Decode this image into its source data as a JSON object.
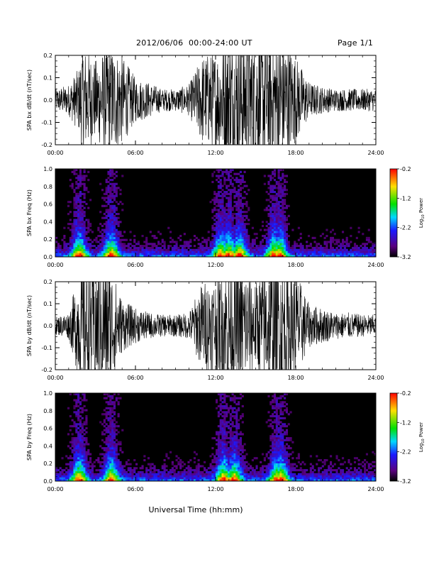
{
  "header": {
    "title": "2012/06/06  00:00-24:00 UT",
    "page": "Page 1/1"
  },
  "xaxis": {
    "label": "Universal Time (hh:mm)",
    "range_hours": [
      0,
      24
    ],
    "ticks": [
      "00:00",
      "06:00",
      "12:00",
      "18:00",
      "24:00"
    ]
  },
  "colorbar": {
    "label_prefix": "Log",
    "label_sub": "10",
    "label_suffix": " Power",
    "ticks": [
      "-0.2",
      "-1.2",
      "-2.2",
      "-3.2"
    ],
    "range": [
      -3.2,
      -0.2
    ],
    "colormap": "rainbow (black-purple-blue-cyan-green-yellow-red)"
  },
  "chart_data": [
    {
      "type": "line",
      "ylabel": "SPA bx dB/dt (nT/sec)",
      "ylim": [
        -0.2,
        0.2
      ],
      "yticks": [
        "-0.2",
        "-0.1",
        "0.0",
        "0.1",
        "0.2"
      ],
      "series": [
        {
          "x_hours": [
            0,
            1,
            1.8,
            2,
            3,
            4,
            5,
            6,
            7,
            8,
            9,
            10,
            11,
            12,
            13,
            14,
            15,
            16,
            17,
            18,
            19,
            20,
            21,
            22,
            23,
            24
          ],
          "amplitude": [
            0.05,
            0.07,
            0.15,
            0.25,
            0.18,
            0.25,
            0.2,
            0.1,
            0.08,
            0.05,
            0.05,
            0.07,
            0.2,
            0.22,
            0.3,
            0.3,
            0.3,
            0.3,
            0.3,
            0.2,
            0.08,
            0.06,
            0.05,
            0.05,
            0.05,
            0.05
          ]
        }
      ]
    },
    {
      "type": "heatmap",
      "ylabel": "SPA bx Freq (Hz)",
      "ylim": [
        0.0,
        1.0
      ],
      "yticks": [
        "0.0",
        "0.2",
        "0.4",
        "0.6",
        "0.8",
        "1.0"
      ],
      "zlim": [
        -3.2,
        -0.2
      ],
      "activity_hours": [
        1.8,
        4.2,
        12.4,
        13.0,
        13.8,
        16.4,
        16.8
      ]
    },
    {
      "type": "line",
      "ylabel": "SPA by dB/dt (nT/sec)",
      "ylim": [
        -0.2,
        0.2
      ],
      "yticks": [
        "-0.2",
        "-0.1",
        "0.0",
        "0.1",
        "0.2"
      ],
      "series": [
        {
          "x_hours": [
            0,
            1,
            1.8,
            2,
            3,
            4,
            5,
            6,
            7,
            8,
            9,
            10,
            11,
            12,
            13,
            14,
            15,
            16,
            17,
            18,
            19,
            20,
            21,
            22,
            23,
            24
          ],
          "amplitude": [
            0.04,
            0.06,
            0.25,
            0.3,
            0.3,
            0.3,
            0.12,
            0.08,
            0.06,
            0.05,
            0.05,
            0.06,
            0.2,
            0.22,
            0.3,
            0.28,
            0.2,
            0.3,
            0.3,
            0.25,
            0.1,
            0.08,
            0.06,
            0.06,
            0.05,
            0.05
          ]
        }
      ]
    },
    {
      "type": "heatmap",
      "ylabel": "SPA by Freq (Hz)",
      "ylim": [
        0.0,
        1.0
      ],
      "yticks": [
        "0.0",
        "0.2",
        "0.4",
        "0.6",
        "0.8",
        "1.0"
      ],
      "zlim": [
        -3.2,
        -0.2
      ],
      "activity_hours": [
        1.8,
        4.2,
        12.6,
        13.4,
        16.6,
        16.9
      ]
    }
  ]
}
